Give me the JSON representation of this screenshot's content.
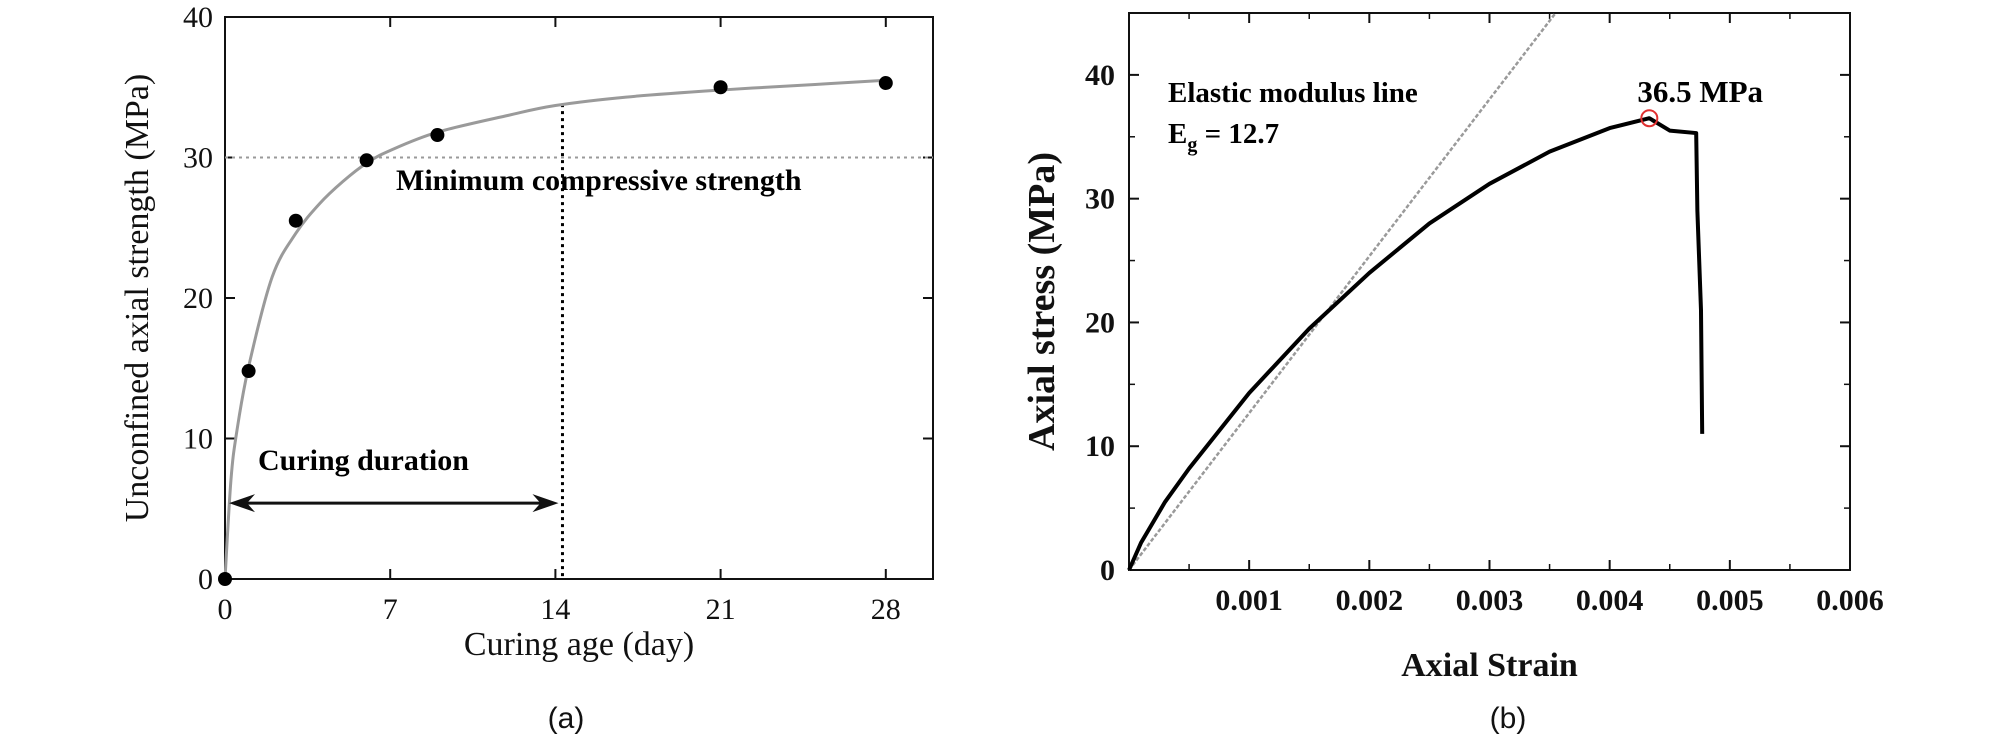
{
  "chart_data": [
    {
      "type": "scatter",
      "panel_label": "(a)",
      "xlabel": "Curing age (day)",
      "ylabel": "Unconfined axial strength (MPa)",
      "xlim": [
        0,
        30
      ],
      "ylim": [
        0,
        40
      ],
      "x_ticks": [
        "0",
        "7",
        "14",
        "21",
        "28"
      ],
      "y_ticks": [
        "0",
        "10",
        "20",
        "30",
        "40"
      ],
      "grid": false,
      "series": [
        {
          "marker": "filled-circle",
          "color": "#000000",
          "points": [
            {
              "x": 0,
              "y": 0
            },
            {
              "x": 1,
              "y": 14.8
            },
            {
              "x": 3,
              "y": 25.5
            },
            {
              "x": 6,
              "y": 29.8
            },
            {
              "x": 9,
              "y": 31.6
            },
            {
              "x": 21,
              "y": 35.0
            },
            {
              "x": 28,
              "y": 35.3
            }
          ]
        },
        {
          "type": "line",
          "style": "fit-curve",
          "color": "#9a9a9a",
          "points": [
            {
              "x": 0,
              "y": 0
            },
            {
              "x": 0.25,
              "y": 7.0
            },
            {
              "x": 0.5,
              "y": 10.5
            },
            {
              "x": 1,
              "y": 15.1
            },
            {
              "x": 2,
              "y": 21.5
            },
            {
              "x": 3,
              "y": 24.6
            },
            {
              "x": 4,
              "y": 26.7
            },
            {
              "x": 5,
              "y": 28.3
            },
            {
              "x": 6,
              "y": 29.6
            },
            {
              "x": 7,
              "y": 30.5
            },
            {
              "x": 9,
              "y": 31.8
            },
            {
              "x": 12,
              "y": 33.0
            },
            {
              "x": 14,
              "y": 33.7
            },
            {
              "x": 17,
              "y": 34.3
            },
            {
              "x": 21,
              "y": 34.8
            },
            {
              "x": 25,
              "y": 35.2
            },
            {
              "x": 28,
              "y": 35.5
            }
          ]
        }
      ],
      "reference_lines": {
        "horizontal_y": 30,
        "horizontal_color": "#9a9a9a",
        "vertical_x": 14.3,
        "vertical_color": "#000000"
      },
      "annotations": {
        "min_strength_label": "Minimum compressive strength",
        "curing_duration_label": "Curing duration",
        "arrow_y": 5.4,
        "arrow_x_start": 0,
        "arrow_x_end": 14.3
      }
    },
    {
      "type": "line",
      "panel_label": "(b)",
      "xlabel": "Axial Strain",
      "ylabel": "Axial stress (MPa)",
      "xlim": [
        0,
        0.006
      ],
      "ylim": [
        0,
        45
      ],
      "x_ticks": [
        "0.001",
        "0.002",
        "0.003",
        "0.004",
        "0.005",
        "0.006"
      ],
      "y_ticks": [
        "0",
        "10",
        "20",
        "30",
        "40"
      ],
      "grid": false,
      "series": [
        {
          "style": "stress-strain",
          "color": "#000000",
          "points": [
            {
              "x": 0,
              "y": 0
            },
            {
              "x": 0.0001,
              "y": 2.2
            },
            {
              "x": 0.0003,
              "y": 5.5
            },
            {
              "x": 0.0005,
              "y": 8.2
            },
            {
              "x": 0.001,
              "y": 14.3
            },
            {
              "x": 0.0015,
              "y": 19.5
            },
            {
              "x": 0.002,
              "y": 24.0
            },
            {
              "x": 0.0025,
              "y": 28.0
            },
            {
              "x": 0.003,
              "y": 31.2
            },
            {
              "x": 0.0035,
              "y": 33.8
            },
            {
              "x": 0.004,
              "y": 35.7
            },
            {
              "x": 0.00433,
              "y": 36.5
            },
            {
              "x": 0.0045,
              "y": 35.5
            },
            {
              "x": 0.00472,
              "y": 35.3
            },
            {
              "x": 0.00473,
              "y": 29.0
            },
            {
              "x": 0.00476,
              "y": 21.0
            },
            {
              "x": 0.00477,
              "y": 11.0
            }
          ]
        },
        {
          "style": "elastic-modulus-line",
          "color": "#9a9a9a",
          "points": [
            {
              "x": 0,
              "y": 0
            },
            {
              "x": 0.00355,
              "y": 45
            }
          ]
        }
      ],
      "peak": {
        "x": 0.00433,
        "y": 36.5,
        "label": "36.5 MPa",
        "color": "#e03030"
      },
      "annotations": {
        "line1": "Elastic modulus line",
        "line2_main": "E",
        "line2_sub": "g",
        "line2_rest": " = 12.7"
      }
    }
  ]
}
